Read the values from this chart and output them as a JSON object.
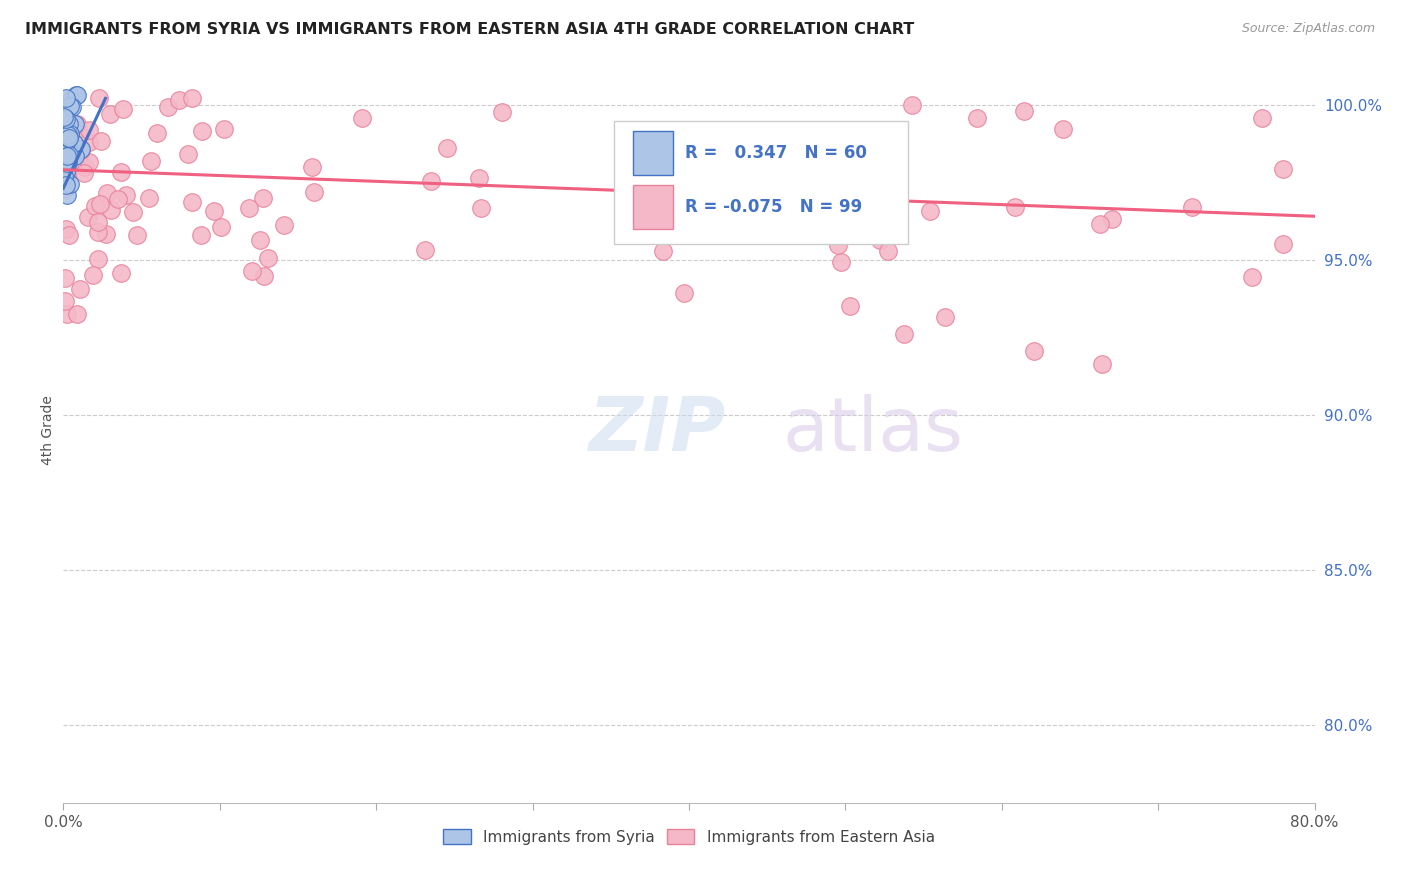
{
  "title": "IMMIGRANTS FROM SYRIA VS IMMIGRANTS FROM EASTERN ASIA 4TH GRADE CORRELATION CHART",
  "source": "Source: ZipAtlas.com",
  "ylabel": "4th Grade",
  "ylabel_right_ticks": [
    "100.0%",
    "95.0%",
    "90.0%",
    "85.0%",
    "80.0%"
  ],
  "ylabel_right_values": [
    1.0,
    0.95,
    0.9,
    0.85,
    0.8
  ],
  "legend_syria_label": "Immigrants from Syria",
  "legend_eastern_asia_label": "Immigrants from Eastern Asia",
  "R_syria": 0.347,
  "N_syria": 60,
  "R_eastern_asia": -0.075,
  "N_eastern_asia": 99,
  "color_syria_fill": "#adc6e8",
  "color_eastern_asia_fill": "#f4b8c8",
  "color_syria_edge": "#4472c4",
  "color_eastern_asia_edge": "#e8829a",
  "color_syria_line": "#4472c4",
  "color_eastern_asia_line": "#f06080",
  "color_title": "#222222",
  "color_source": "#999999",
  "color_right_axis": "#4472c4",
  "color_legend_text": "#4472c4",
  "watermark_zip": "ZIP",
  "watermark_atlas": "atlas",
  "xlim": [
    0.0,
    0.8
  ],
  "ylim": [
    0.775,
    1.015
  ],
  "xtick_positions": [
    0.0,
    0.1,
    0.2,
    0.3,
    0.4,
    0.5,
    0.6,
    0.7,
    0.8
  ],
  "syria_line_x": [
    0.0,
    0.027
  ],
  "syria_line_y": [
    0.973,
    1.002
  ],
  "ea_line_x": [
    0.0,
    0.8
  ],
  "ea_line_y": [
    0.979,
    0.964
  ]
}
